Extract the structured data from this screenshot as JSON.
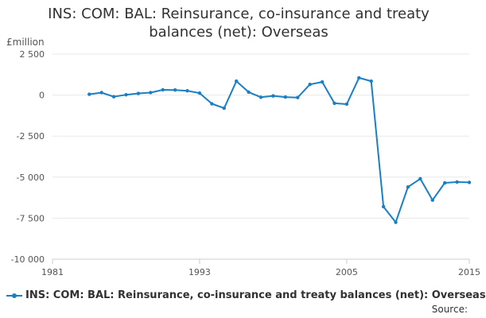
{
  "title_line1": "INS: COM: BAL: Reinsurance, co-insurance and treaty",
  "title_line2": "balances (net): Overseas",
  "source_label": "Source:",
  "colors": {
    "series": "#1a7fc3",
    "grid": "#e8e8e8",
    "axis_text": "#555555"
  },
  "chart_data": {
    "type": "line",
    "title": "INS: COM: BAL: Reinsurance, co-insurance and treaty balances (net): Overseas",
    "ylabel": "£million",
    "xlabel": "",
    "xlim": [
      1981,
      2015
    ],
    "ylim": [
      -10000,
      2500
    ],
    "x_ticks": [
      1981,
      1993,
      2005,
      2015
    ],
    "x_tick_labels": [
      "1981",
      "1993",
      "2005",
      "2015"
    ],
    "y_ticks": [
      2500,
      0,
      -2500,
      -5000,
      -7500,
      -10000
    ],
    "y_tick_labels": [
      "2 500",
      "0",
      "-2 500",
      "-5 000",
      "-7 500",
      "-10 000"
    ],
    "grid": true,
    "legend_position": "bottom",
    "series": [
      {
        "name": "INS: COM: BAL: Reinsurance, co-insurance and treaty balances (net): Overseas",
        "x": [
          1984,
          1985,
          1986,
          1987,
          1988,
          1989,
          1990,
          1991,
          1992,
          1993,
          1994,
          1995,
          1996,
          1997,
          1998,
          1999,
          2000,
          2001,
          2002,
          2003,
          2004,
          2005,
          2006,
          2007,
          2008,
          2009,
          2010,
          2011,
          2012,
          2013,
          2014,
          2015
        ],
        "values": [
          50,
          150,
          -100,
          20,
          100,
          150,
          320,
          310,
          260,
          120,
          -530,
          -800,
          850,
          180,
          -130,
          -50,
          -120,
          -150,
          650,
          800,
          -500,
          -550,
          1050,
          850,
          -6800,
          -7750,
          -5600,
          -5100,
          -6400,
          -5350,
          -5300,
          -5320
        ]
      }
    ]
  }
}
